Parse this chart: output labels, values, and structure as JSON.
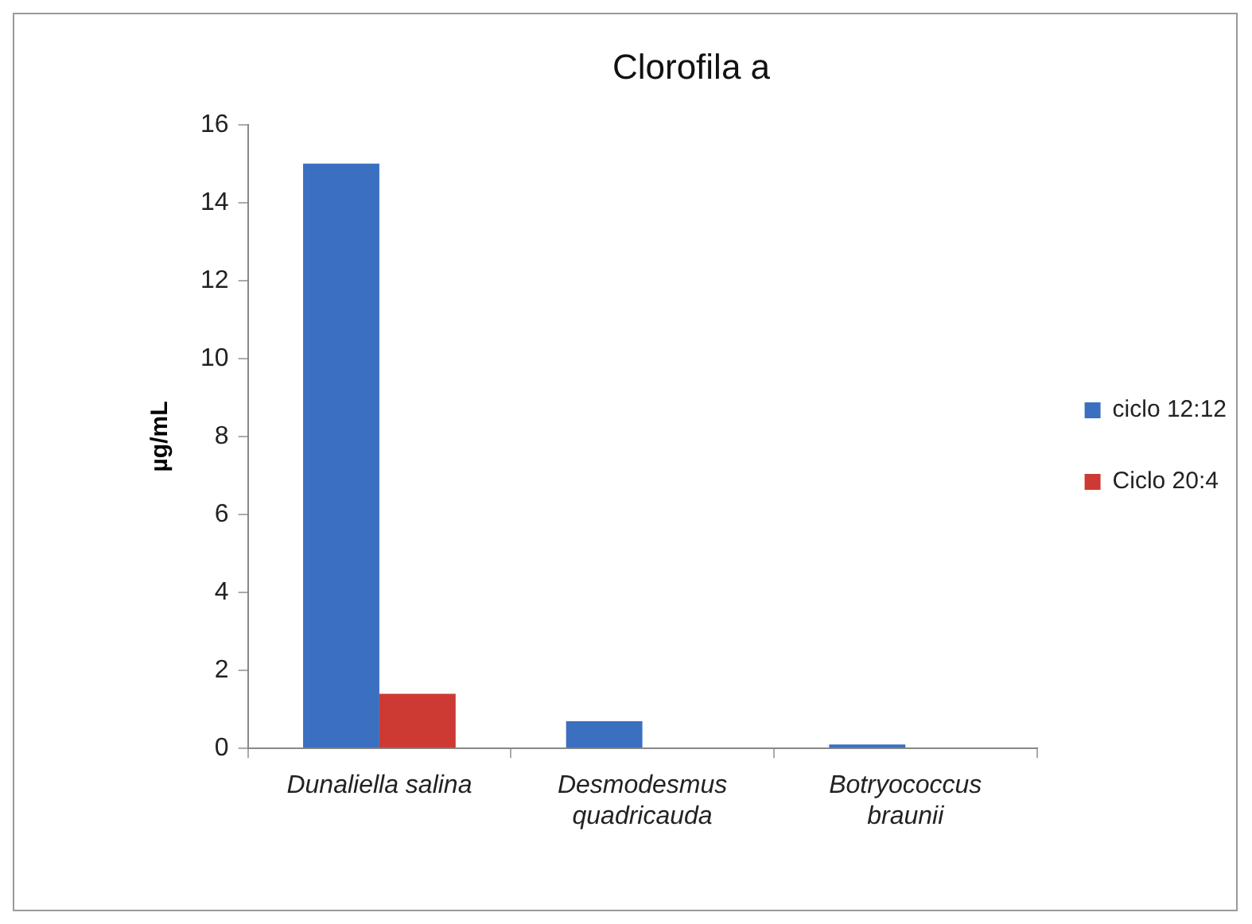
{
  "chart_data": {
    "type": "bar",
    "title": "Clorofila a",
    "ylabel": "µg/mL",
    "categories": [
      "Dunaliella salina",
      "Desmodesmus quadricauda",
      "Botryococcus braunii"
    ],
    "series": [
      {
        "name": "ciclo 12:12",
        "color": "#3b6fbf",
        "values": [
          15,
          0.7,
          0.1
        ]
      },
      {
        "name": "Ciclo 20:4",
        "color": "#cc3a33",
        "values": [
          1.4,
          null,
          null
        ]
      }
    ],
    "ylim": [
      0,
      16
    ],
    "yticks": [
      0,
      2,
      4,
      6,
      8,
      10,
      12,
      14,
      16
    ],
    "grid": false,
    "legend": "right"
  }
}
